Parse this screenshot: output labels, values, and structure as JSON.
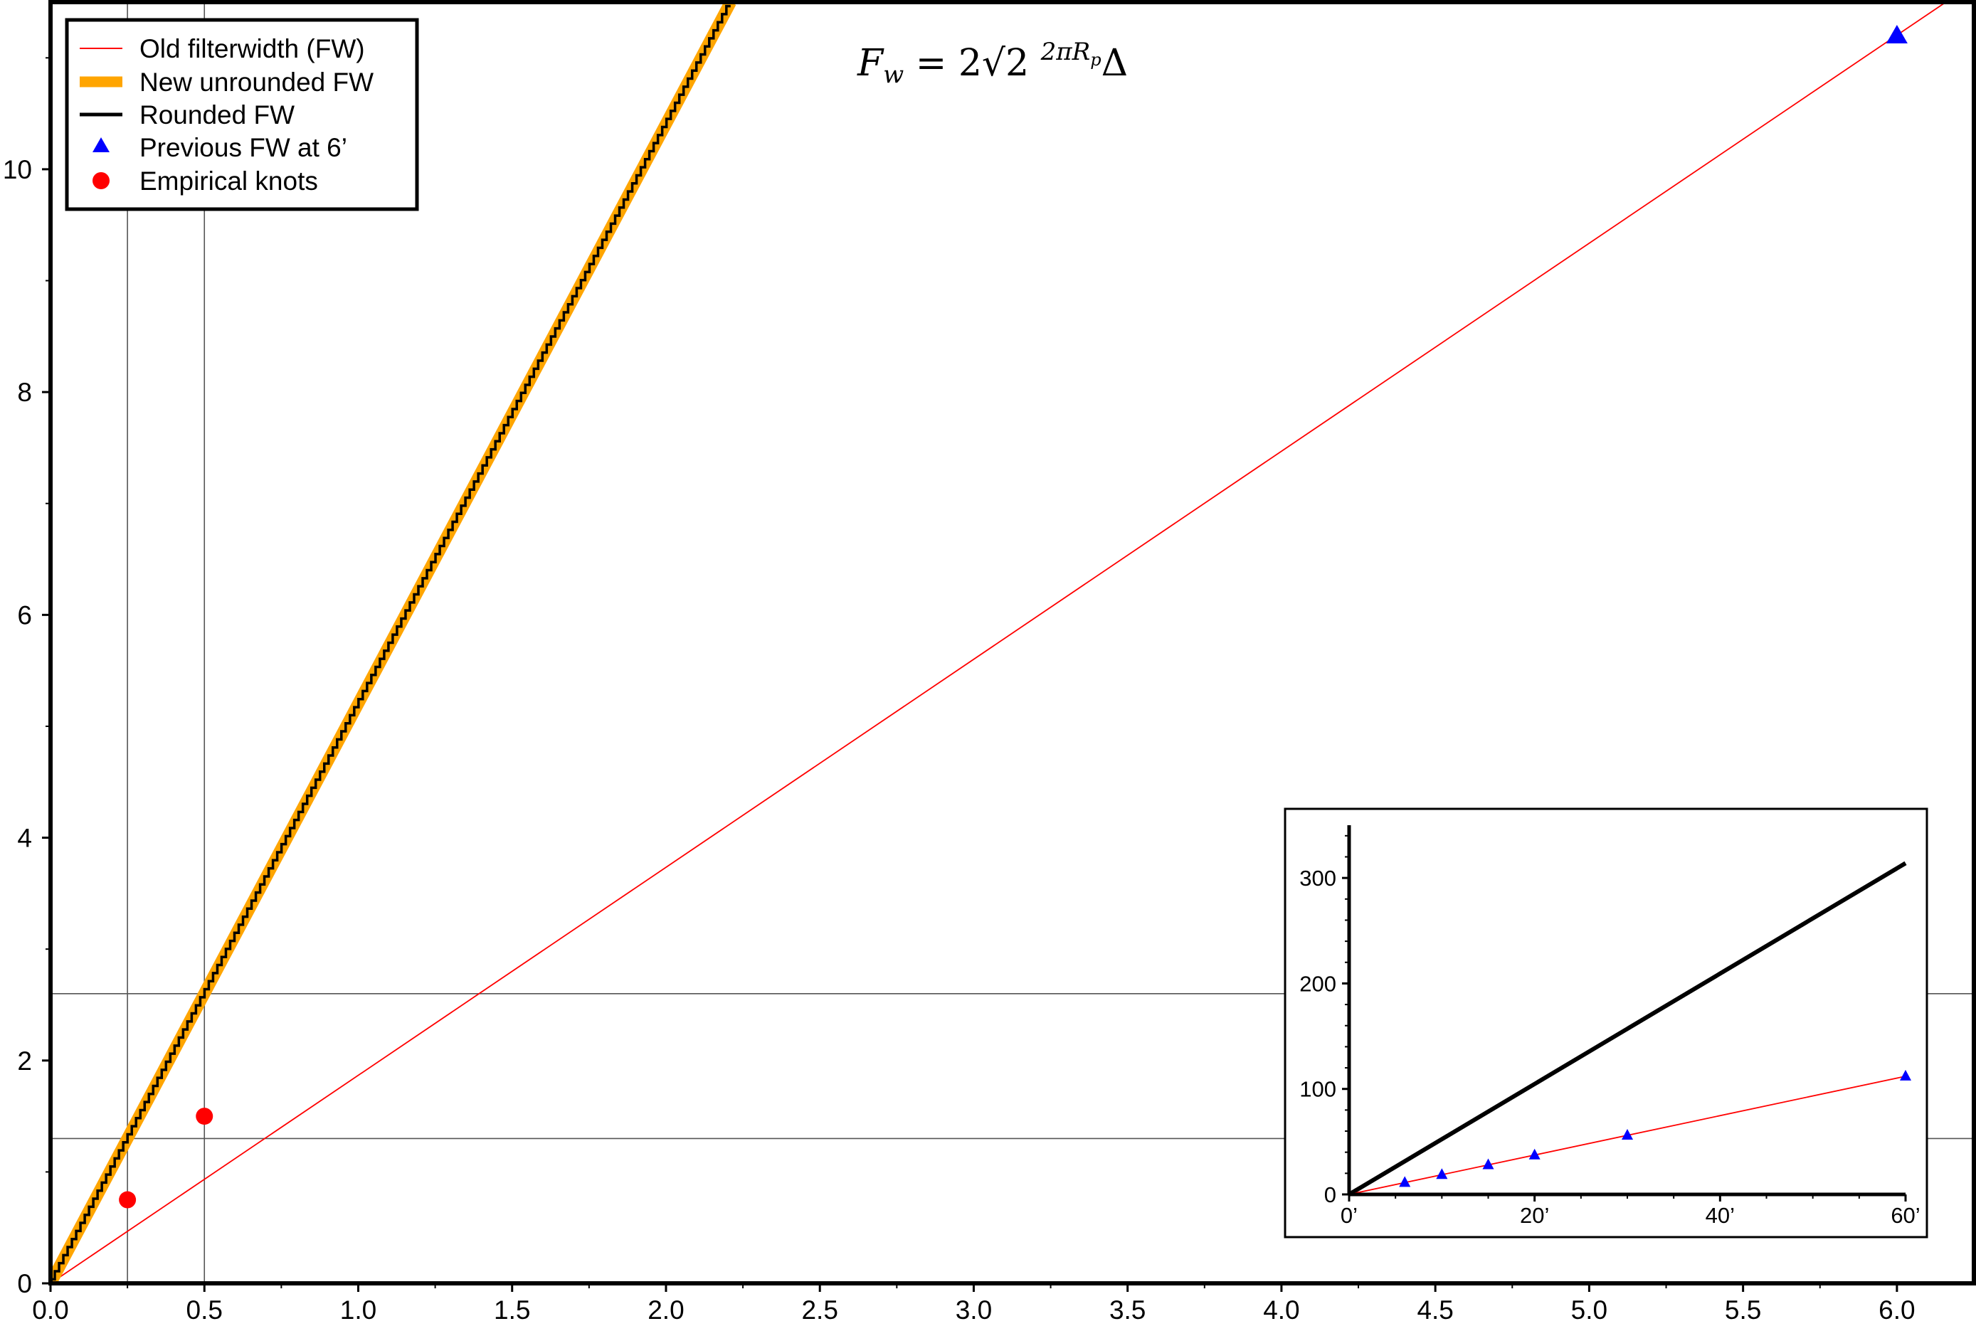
{
  "chart_data": [
    {
      "type": "line",
      "title": "",
      "xlabel": "",
      "ylabel": "",
      "xlim": [
        0,
        6.25
      ],
      "ylim": [
        0,
        11.5
      ],
      "x_ticks": [
        0.0,
        0.5,
        1.0,
        1.5,
        2.0,
        2.5,
        3.0,
        3.5,
        4.0,
        4.5,
        5.0,
        5.5,
        6.0
      ],
      "x_tick_labels": [
        "0.0",
        "0.5",
        "1.0",
        "1.5",
        "2.0",
        "2.5",
        "3.0",
        "3.5",
        "4.0",
        "4.5",
        "5.0",
        "5.5",
        "6.0"
      ],
      "y_ticks": [
        0,
        2,
        4,
        6,
        8,
        10
      ],
      "y_tick_labels": [
        "0",
        "2",
        "4",
        "6",
        "8",
        "10"
      ],
      "grid": false,
      "legend_position": "top-left",
      "annotation": "F_w = 2√2 (2πR_p / 360) Δ",
      "reference_lines": {
        "vertical": [
          0.25,
          0.5
        ],
        "horizontal": [
          1.3,
          2.6
        ]
      },
      "series": [
        {
          "name": "Old filterwidth (FW)",
          "style": "thin-line",
          "color": "#ff0000",
          "x": [
            0,
            6.25
          ],
          "y": [
            0,
            11.67
          ]
        },
        {
          "name": "New unrounded FW",
          "style": "thick-line",
          "color": "#ffa500",
          "x": [
            0,
            2.21
          ],
          "y": [
            0,
            11.5
          ]
        },
        {
          "name": "Rounded FW",
          "style": "stepped-line",
          "color": "#000000",
          "x": [
            0,
            2.21
          ],
          "y": [
            0,
            11.5
          ]
        },
        {
          "name": "Previous FW at 6’",
          "style": "triangle-marker",
          "color": "#0000ff",
          "x": [
            6.0
          ],
          "y": [
            11.2
          ]
        },
        {
          "name": "Empirical knots",
          "style": "circle-marker",
          "color": "#ff0000",
          "x": [
            0.25,
            0.5
          ],
          "y": [
            0.75,
            1.5
          ]
        }
      ]
    },
    {
      "type": "line",
      "title": "",
      "xlabel": "",
      "ylabel": "",
      "xlim": [
        0,
        60
      ],
      "ylim": [
        0,
        350
      ],
      "x_ticks": [
        0,
        20,
        40,
        60
      ],
      "x_tick_labels": [
        "0’",
        "20’",
        "40’",
        "60’"
      ],
      "y_ticks": [
        0,
        100,
        200,
        300
      ],
      "y_tick_labels": [
        "0",
        "100",
        "200",
        "300"
      ],
      "grid": false,
      "series": [
        {
          "name": "",
          "style": "thick-line",
          "color": "#000000",
          "x": [
            0,
            60
          ],
          "y": [
            0,
            314
          ]
        },
        {
          "name": "",
          "style": "thin-line",
          "color": "#ff0000",
          "x": [
            0,
            60
          ],
          "y": [
            0,
            112
          ]
        },
        {
          "name": "",
          "style": "triangle-marker",
          "color": "#0000ff",
          "x": [
            6,
            10,
            15,
            20,
            30,
            60
          ],
          "y": [
            11.2,
            18.7,
            28,
            37.3,
            56,
            112
          ]
        }
      ]
    }
  ]
}
